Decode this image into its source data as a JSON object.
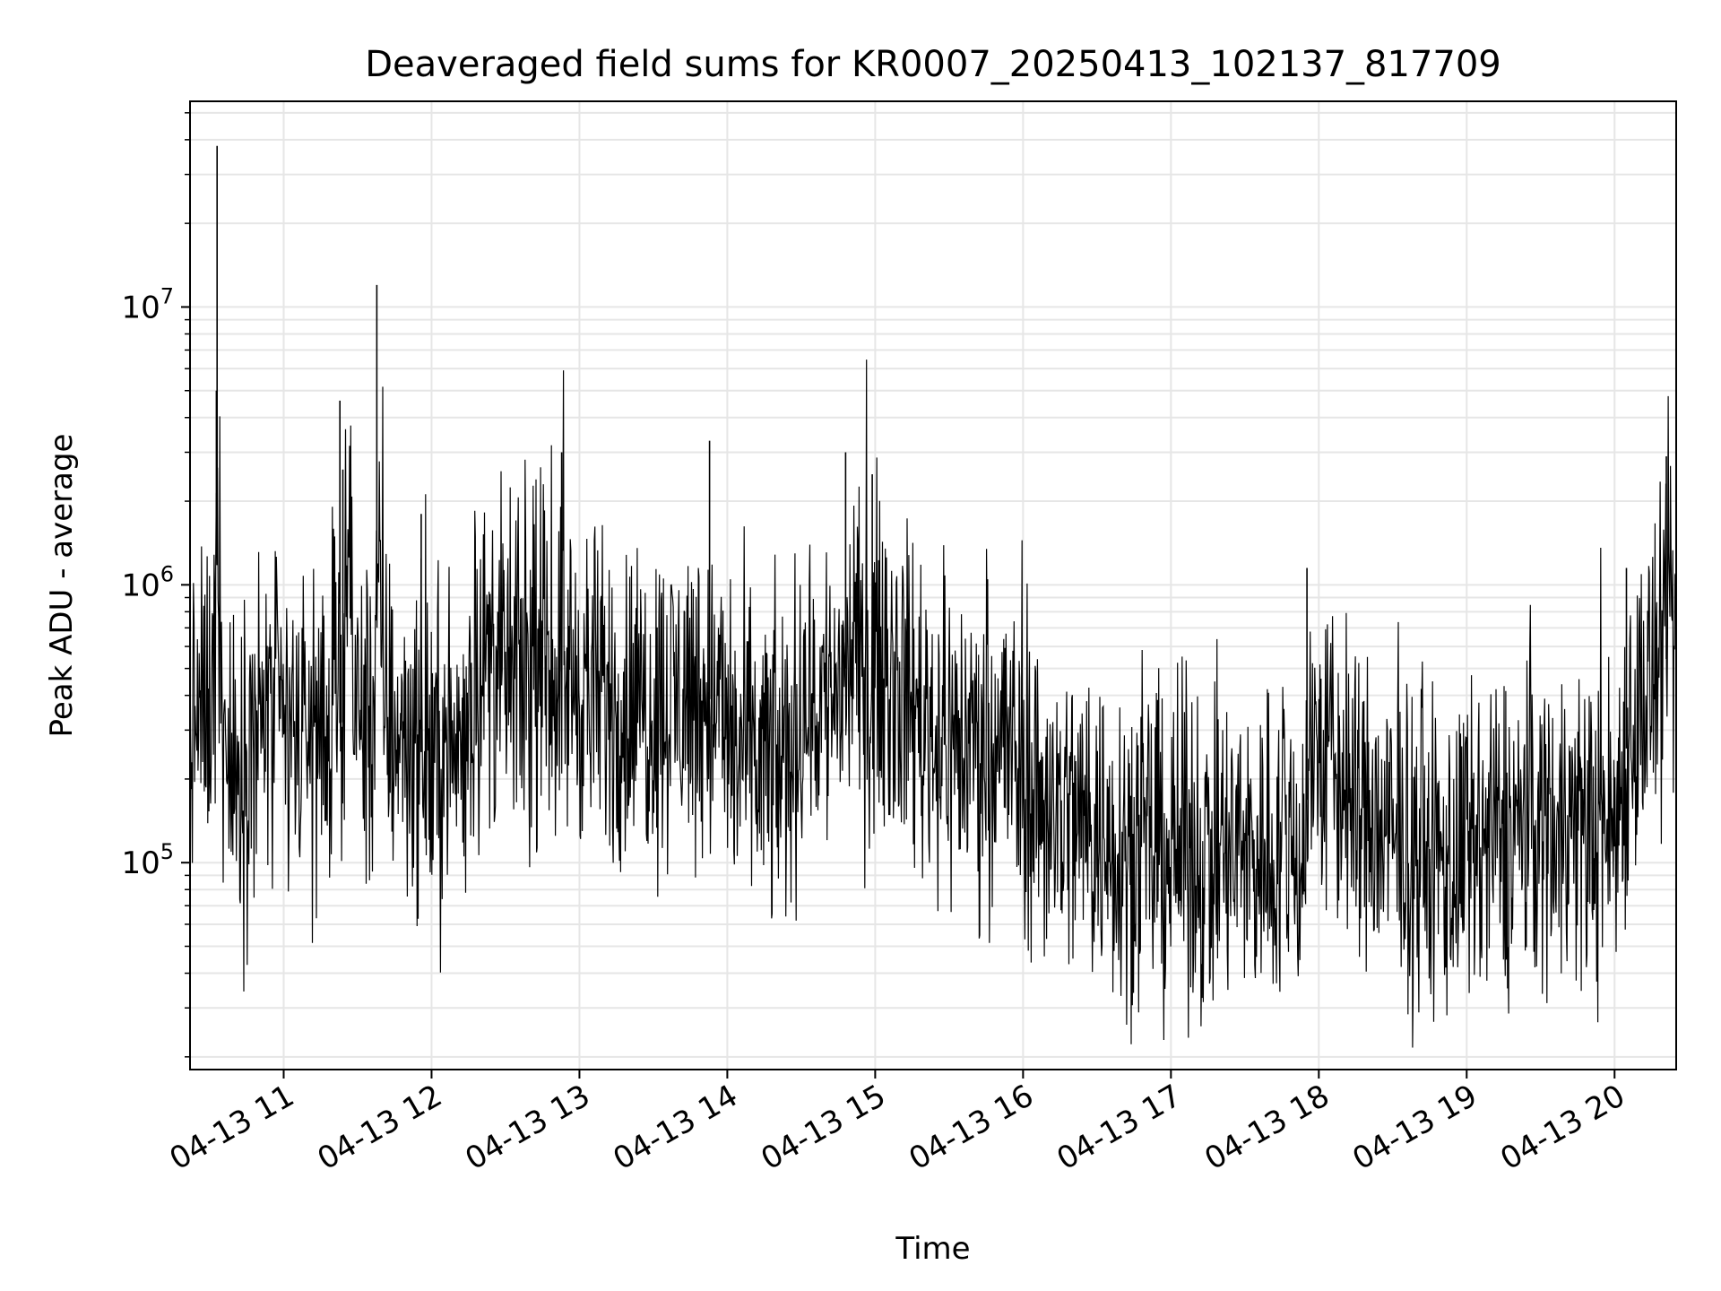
{
  "chart_data": {
    "type": "line",
    "title": "Deaveraged field sums for KR0007_20250413_102137_817709",
    "xlabel": "Time",
    "ylabel": "Peak ADU - average",
    "x_range": [
      "2025-04-13 10:22",
      "2025-04-13 20:25"
    ],
    "y_scale": "log",
    "y_range": [
      18000,
      55000000
    ],
    "x_ticks": [
      "04-13 11",
      "04-13 12",
      "04-13 13",
      "04-13 14",
      "04-13 15",
      "04-13 16",
      "04-13 17",
      "04-13 18",
      "04-13 19",
      "04-13 20"
    ],
    "y_ticks": [
      {
        "base": "10",
        "exp": "5",
        "value": 100000
      },
      {
        "base": "10",
        "exp": "6",
        "value": 1000000
      },
      {
        "base": "10",
        "exp": "7",
        "value": 10000000
      }
    ],
    "grid": true,
    "line_color": "#000000",
    "grid_color": "#e6e6e6",
    "series": [
      {
        "values_approx": {
          "x_hours": [
            10.37,
            10.45,
            10.52,
            10.55,
            10.6,
            10.65,
            10.7,
            10.8,
            10.9,
            11.0,
            11.1,
            11.2,
            11.3,
            11.4,
            11.42,
            11.5,
            11.6,
            11.63,
            11.7,
            11.8,
            11.9,
            11.93,
            12.0,
            12.1,
            12.2,
            12.3,
            12.4,
            12.5,
            12.6,
            12.7,
            12.8,
            12.9,
            13.0,
            13.1,
            13.2,
            13.3,
            13.4,
            13.5,
            13.6,
            13.7,
            13.8,
            13.9,
            14.0,
            14.05,
            14.1,
            14.2,
            14.3,
            14.4,
            14.5,
            14.6,
            14.7,
            14.8,
            14.9,
            15.0,
            15.1,
            15.2,
            15.3,
            15.4,
            15.5,
            15.6,
            15.7,
            15.8,
            15.9,
            16.0,
            16.1,
            16.2,
            16.3,
            16.4,
            16.5,
            16.6,
            16.7,
            16.8,
            16.9,
            17.0,
            17.1,
            17.2,
            17.3,
            17.4,
            17.5,
            17.6,
            17.7,
            17.8,
            17.9,
            17.95,
            18.0,
            18.1,
            18.2,
            18.3,
            18.4,
            18.5,
            18.6,
            18.7,
            18.8,
            18.9,
            19.0,
            19.1,
            19.2,
            19.3,
            19.4,
            19.5,
            19.6,
            19.7,
            19.8,
            19.9,
            20.0,
            20.1,
            20.2,
            20.3,
            20.4
          ],
          "y_median": [
            300000,
            350000,
            380000,
            2000000,
            250000,
            200000,
            200000,
            300000,
            330000,
            300000,
            280000,
            300000,
            310000,
            320000,
            1500000,
            330000,
            300000,
            1000000,
            320000,
            300000,
            280000,
            250000,
            240000,
            250000,
            260000,
            500000,
            550000,
            480000,
            460000,
            480000,
            520000,
            480000,
            450000,
            400000,
            380000,
            360000,
            370000,
            380000,
            380000,
            400000,
            420000,
            380000,
            300000,
            250000,
            240000,
            240000,
            220000,
            230000,
            350000,
            380000,
            400000,
            500000,
            500000,
            550000,
            500000,
            420000,
            350000,
            300000,
            280000,
            260000,
            280000,
            300000,
            260000,
            200000,
            170000,
            160000,
            150000,
            140000,
            130000,
            125000,
            120000,
            115000,
            110000,
            110000,
            110000,
            110000,
            105000,
            105000,
            105000,
            110000,
            115000,
            115000,
            120000,
            280000,
            250000,
            220000,
            170000,
            150000,
            130000,
            115000,
            110000,
            105000,
            100000,
            100000,
            100000,
            110000,
            120000,
            130000,
            140000,
            140000,
            145000,
            140000,
            135000,
            130000,
            140000,
            300000,
            400000,
            450000,
            650000
          ]
        }
      }
    ]
  }
}
